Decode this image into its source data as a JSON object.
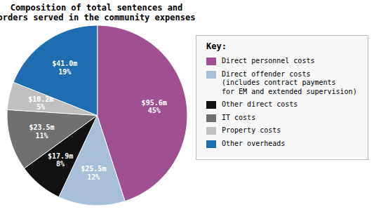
{
  "chart_data": {
    "type": "pie",
    "title": "Composition of total sentences and\norders served in the community expenses",
    "categories": [
      "Direct personnel costs",
      "Direct offender costs\n(includes contract payments\nfor EM and extended supervision)",
      "Other direct costs",
      "IT costs",
      "Property costs",
      "Other overheads"
    ],
    "values": [
      45,
      12,
      8,
      11,
      5,
      19
    ],
    "value_labels": [
      "$95.6m\n45%",
      "$25.5m\n12%",
      "$17.9m\n8%",
      "$23.5m\n11%",
      "$10.2m\n5%",
      "$41.0m\n19%"
    ],
    "colors": [
      "#a05090",
      "#a8bfd8",
      "#111111",
      "#707070",
      "#c0c0c0",
      "#1e6db0"
    ],
    "data_labels": true,
    "legend": "right",
    "legend_title": "Key:"
  }
}
